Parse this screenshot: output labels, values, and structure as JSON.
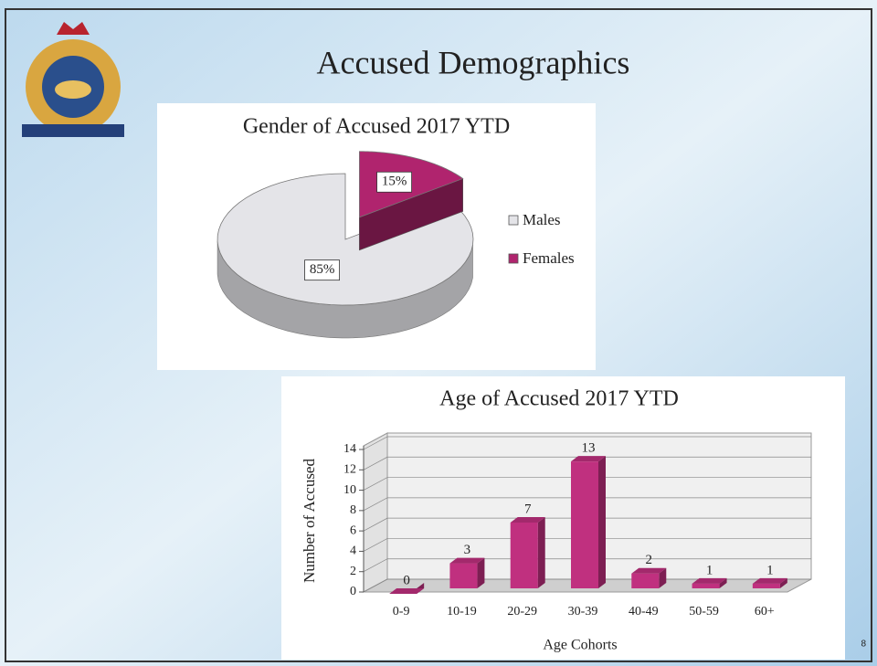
{
  "slide": {
    "title": "Accused Demographics",
    "page": "8"
  },
  "chart_data": [
    {
      "type": "pie",
      "title": "Gender of Accused 2017 YTD",
      "categories": [
        "Males",
        "Females"
      ],
      "values": [
        85,
        15
      ],
      "value_labels": [
        "85%",
        "15%"
      ],
      "colors": [
        "#e4e4e8",
        "#b0246e"
      ],
      "legend": "right"
    },
    {
      "type": "bar",
      "title": "Age of Accused 2017 YTD",
      "categories": [
        "0-9",
        "10-19",
        "20-29",
        "30-39",
        "40-49",
        "50-59",
        "60+"
      ],
      "values": [
        0,
        3,
        7,
        13,
        2,
        1,
        1
      ],
      "color": "#c0307f",
      "xlabel": "Age Cohorts",
      "ylabel": "Number of Accused",
      "ylim": [
        0,
        14
      ],
      "yticks": [
        0,
        2,
        4,
        6,
        8,
        10,
        12,
        14
      ],
      "grid": true
    }
  ]
}
